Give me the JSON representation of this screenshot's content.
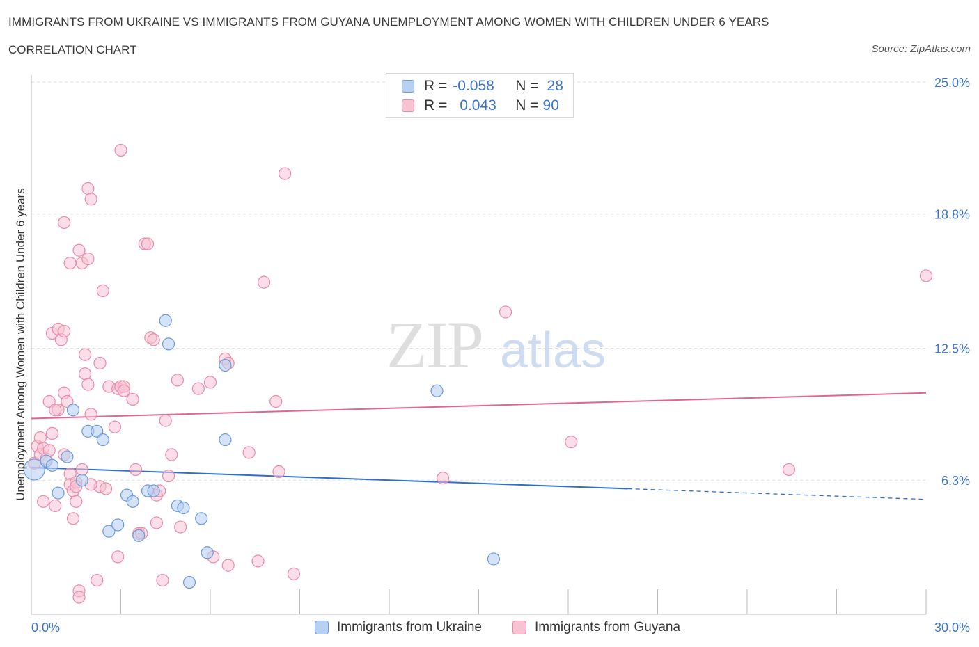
{
  "header": {
    "title": "IMMIGRANTS FROM UKRAINE VS IMMIGRANTS FROM GUYANA UNEMPLOYMENT AMONG WOMEN WITH CHILDREN UNDER 6 YEARS",
    "subtitle": "CORRELATION CHART",
    "source": "Source: ZipAtlas.com"
  },
  "legend": {
    "ukraine": {
      "r_label": "R =",
      "r_value": "-0.058",
      "n_label": "N =",
      "n_value": "28"
    },
    "guyana": {
      "r_label": "R =",
      "r_value": "0.043",
      "n_label": "N =",
      "n_value": "90"
    }
  },
  "watermark": {
    "zip": "ZIP",
    "atlas": "atlas"
  },
  "colors": {
    "ukraine_fill": "#b8d0f2",
    "ukraine_stroke": "#6c9ad8",
    "ukraine_line": "#2f6fcc",
    "guyana_fill": "#f7c3d3",
    "guyana_stroke": "#e98aa8",
    "guyana_line": "#e06590",
    "tick_label": "#3a73c8",
    "grid": "#dddddd"
  },
  "chart_data": {
    "type": "scatter",
    "title": "IMMIGRANTS FROM UKRAINE VS IMMIGRANTS FROM GUYANA UNEMPLOYMENT AMONG WOMEN WITH CHILDREN UNDER 6 YEARS",
    "xlabel": "",
    "ylabel": "Unemployment Among Women with Children Under 6 years",
    "xlim": [
      0,
      30
    ],
    "ylim": [
      0,
      25
    ],
    "x_tick_labels": [
      "0.0%",
      "30.0%"
    ],
    "y_tick_values": [
      6.3,
      12.5,
      18.8,
      25.0
    ],
    "y_tick_labels": [
      "6.3%",
      "12.5%",
      "18.8%",
      "25.0%"
    ],
    "grid": true,
    "legend_position": "top-center",
    "series": [
      {
        "name": "Immigrants from Ukraine",
        "R": -0.058,
        "N": 28,
        "trend": {
          "x_start": 0,
          "y_start": 6.9,
          "x_solid_end": 20,
          "x_end": 30,
          "y_end": 5.4
        },
        "points": [
          [
            0.1,
            6.8
          ],
          [
            0.5,
            7.2
          ],
          [
            0.7,
            7.0
          ],
          [
            0.9,
            5.7
          ],
          [
            1.2,
            7.4
          ],
          [
            1.4,
            9.6
          ],
          [
            1.7,
            6.3
          ],
          [
            1.9,
            8.6
          ],
          [
            2.2,
            8.6
          ],
          [
            2.4,
            8.2
          ],
          [
            2.6,
            3.9
          ],
          [
            2.9,
            4.2
          ],
          [
            3.2,
            5.6
          ],
          [
            3.4,
            5.3
          ],
          [
            3.6,
            3.7
          ],
          [
            3.9,
            5.8
          ],
          [
            4.1,
            5.8
          ],
          [
            4.5,
            13.8
          ],
          [
            4.6,
            12.7
          ],
          [
            4.9,
            5.1
          ],
          [
            5.1,
            5.0
          ],
          [
            5.7,
            4.5
          ],
          [
            5.9,
            2.9
          ],
          [
            5.3,
            1.5
          ],
          [
            6.5,
            8.2
          ],
          [
            6.5,
            11.7
          ],
          [
            13.6,
            10.5
          ],
          [
            15.5,
            2.6
          ]
        ]
      },
      {
        "name": "Immigrants from Guyana",
        "R": 0.043,
        "N": 90,
        "trend": {
          "x_start": 0,
          "y_start": 9.2,
          "x_end": 30,
          "y_end": 10.4
        },
        "points": [
          [
            0.1,
            7.1
          ],
          [
            0.2,
            7.9
          ],
          [
            0.3,
            8.3
          ],
          [
            0.3,
            7.5
          ],
          [
            0.4,
            7.8
          ],
          [
            0.5,
            7.3
          ],
          [
            0.4,
            5.3
          ],
          [
            0.6,
            7.7
          ],
          [
            0.7,
            8.5
          ],
          [
            0.6,
            10.0
          ],
          [
            0.7,
            13.2
          ],
          [
            0.8,
            5.1
          ],
          [
            0.9,
            9.6
          ],
          [
            0.9,
            13.4
          ],
          [
            1.0,
            12.9
          ],
          [
            1.1,
            13.3
          ],
          [
            1.1,
            7.5
          ],
          [
            1.1,
            10.4
          ],
          [
            1.2,
            10.0
          ],
          [
            1.1,
            18.4
          ],
          [
            1.3,
            16.5
          ],
          [
            1.3,
            6.6
          ],
          [
            1.3,
            6.1
          ],
          [
            1.4,
            5.8
          ],
          [
            1.5,
            6.2
          ],
          [
            1.5,
            6.0
          ],
          [
            1.4,
            4.5
          ],
          [
            1.5,
            5.3
          ],
          [
            1.6,
            1.1
          ],
          [
            1.6,
            0.8
          ],
          [
            1.6,
            17.1
          ],
          [
            1.7,
            16.5
          ],
          [
            1.7,
            6.8
          ],
          [
            1.8,
            12.2
          ],
          [
            1.8,
            11.3
          ],
          [
            1.9,
            10.8
          ],
          [
            1.9,
            16.7
          ],
          [
            1.9,
            20.0
          ],
          [
            2.0,
            19.5
          ],
          [
            2.0,
            9.4
          ],
          [
            2.2,
            1.6
          ],
          [
            2.3,
            11.8
          ],
          [
            2.4,
            15.2
          ],
          [
            2.3,
            6.0
          ],
          [
            2.5,
            5.9
          ],
          [
            2.6,
            10.7
          ],
          [
            2.8,
            8.8
          ],
          [
            2.9,
            10.6
          ],
          [
            3.0,
            10.7
          ],
          [
            3.0,
            21.8
          ],
          [
            3.1,
            10.7
          ],
          [
            2.9,
            2.7
          ],
          [
            3.1,
            10.5
          ],
          [
            3.4,
            10.1
          ],
          [
            3.5,
            6.8
          ],
          [
            3.6,
            3.8
          ],
          [
            3.7,
            3.8
          ],
          [
            3.8,
            17.4
          ],
          [
            3.9,
            17.4
          ],
          [
            4.0,
            13.0
          ],
          [
            4.1,
            12.9
          ],
          [
            4.2,
            4.3
          ],
          [
            4.2,
            5.6
          ],
          [
            4.4,
            1.6
          ],
          [
            4.5,
            9.1
          ],
          [
            4.7,
            7.5
          ],
          [
            4.6,
            6.5
          ],
          [
            4.9,
            11.0
          ],
          [
            5.0,
            4.1
          ],
          [
            5.6,
            10.6
          ],
          [
            6.0,
            10.9
          ],
          [
            6.1,
            2.7
          ],
          [
            6.5,
            12.0
          ],
          [
            6.6,
            11.8
          ],
          [
            6.6,
            2.3
          ],
          [
            7.3,
            7.6
          ],
          [
            7.6,
            2.5
          ],
          [
            7.8,
            15.6
          ],
          [
            8.2,
            10.0
          ],
          [
            8.3,
            6.7
          ],
          [
            8.5,
            20.7
          ],
          [
            8.8,
            1.9
          ],
          [
            13.8,
            6.4
          ],
          [
            15.9,
            14.2
          ],
          [
            18.1,
            8.1
          ],
          [
            25.4,
            6.8
          ],
          [
            30.0,
            15.9
          ],
          [
            4.3,
            5.8
          ],
          [
            2.0,
            6.1
          ],
          [
            0.8,
            9.6
          ]
        ]
      }
    ]
  },
  "legend_bottom": {
    "ukraine": "Immigrants from Ukraine",
    "guyana": "Immigrants from Guyana"
  }
}
